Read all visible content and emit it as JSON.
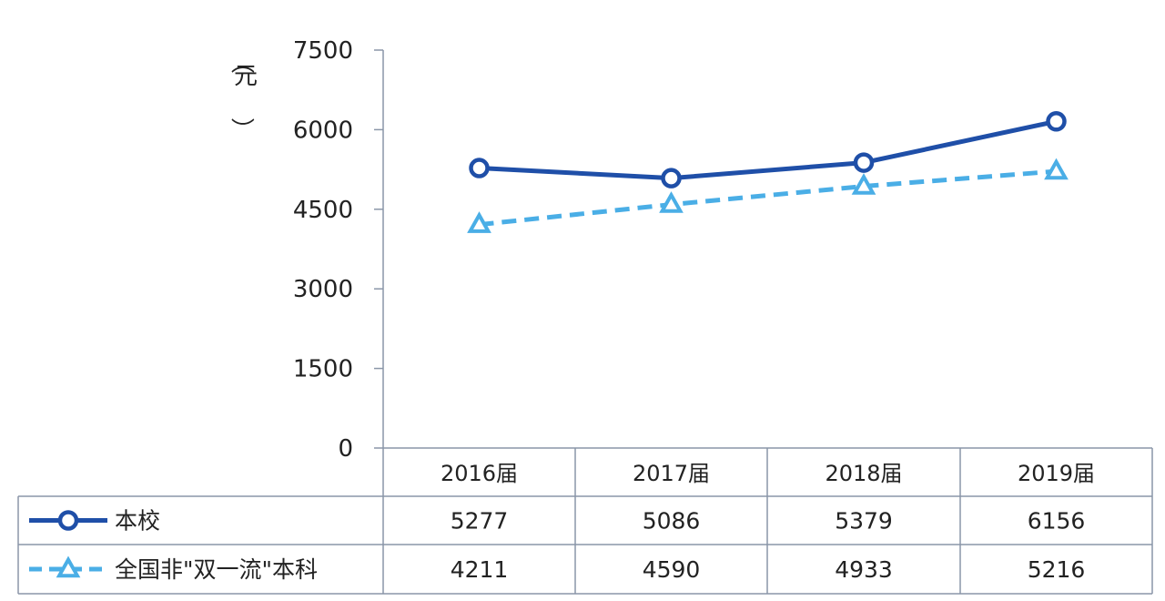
{
  "chart_data": {
    "type": "line",
    "categories": [
      "2016届",
      "2017届",
      "2018届",
      "2019届"
    ],
    "series": [
      {
        "name": "本校",
        "values": [
          5277,
          5086,
          5379,
          6156
        ],
        "color": "#1f4fa8",
        "marker": "circle",
        "line_style": "solid"
      },
      {
        "name": "全国非\"双一流\"本科",
        "values": [
          4211,
          4590,
          4933,
          5216
        ],
        "color": "#4aaee6",
        "marker": "triangle",
        "line_style": "dashed"
      }
    ],
    "y_axis": {
      "unit_label": "（元）",
      "ticks": [
        0,
        1500,
        3000,
        4500,
        6000,
        7500
      ],
      "tick_labels": [
        "0",
        "1500",
        "3000",
        "4500",
        "6000",
        "7500"
      ],
      "ylim": [
        0,
        7500
      ]
    },
    "grid": false,
    "legend": "data-table-below",
    "data_table": true
  }
}
